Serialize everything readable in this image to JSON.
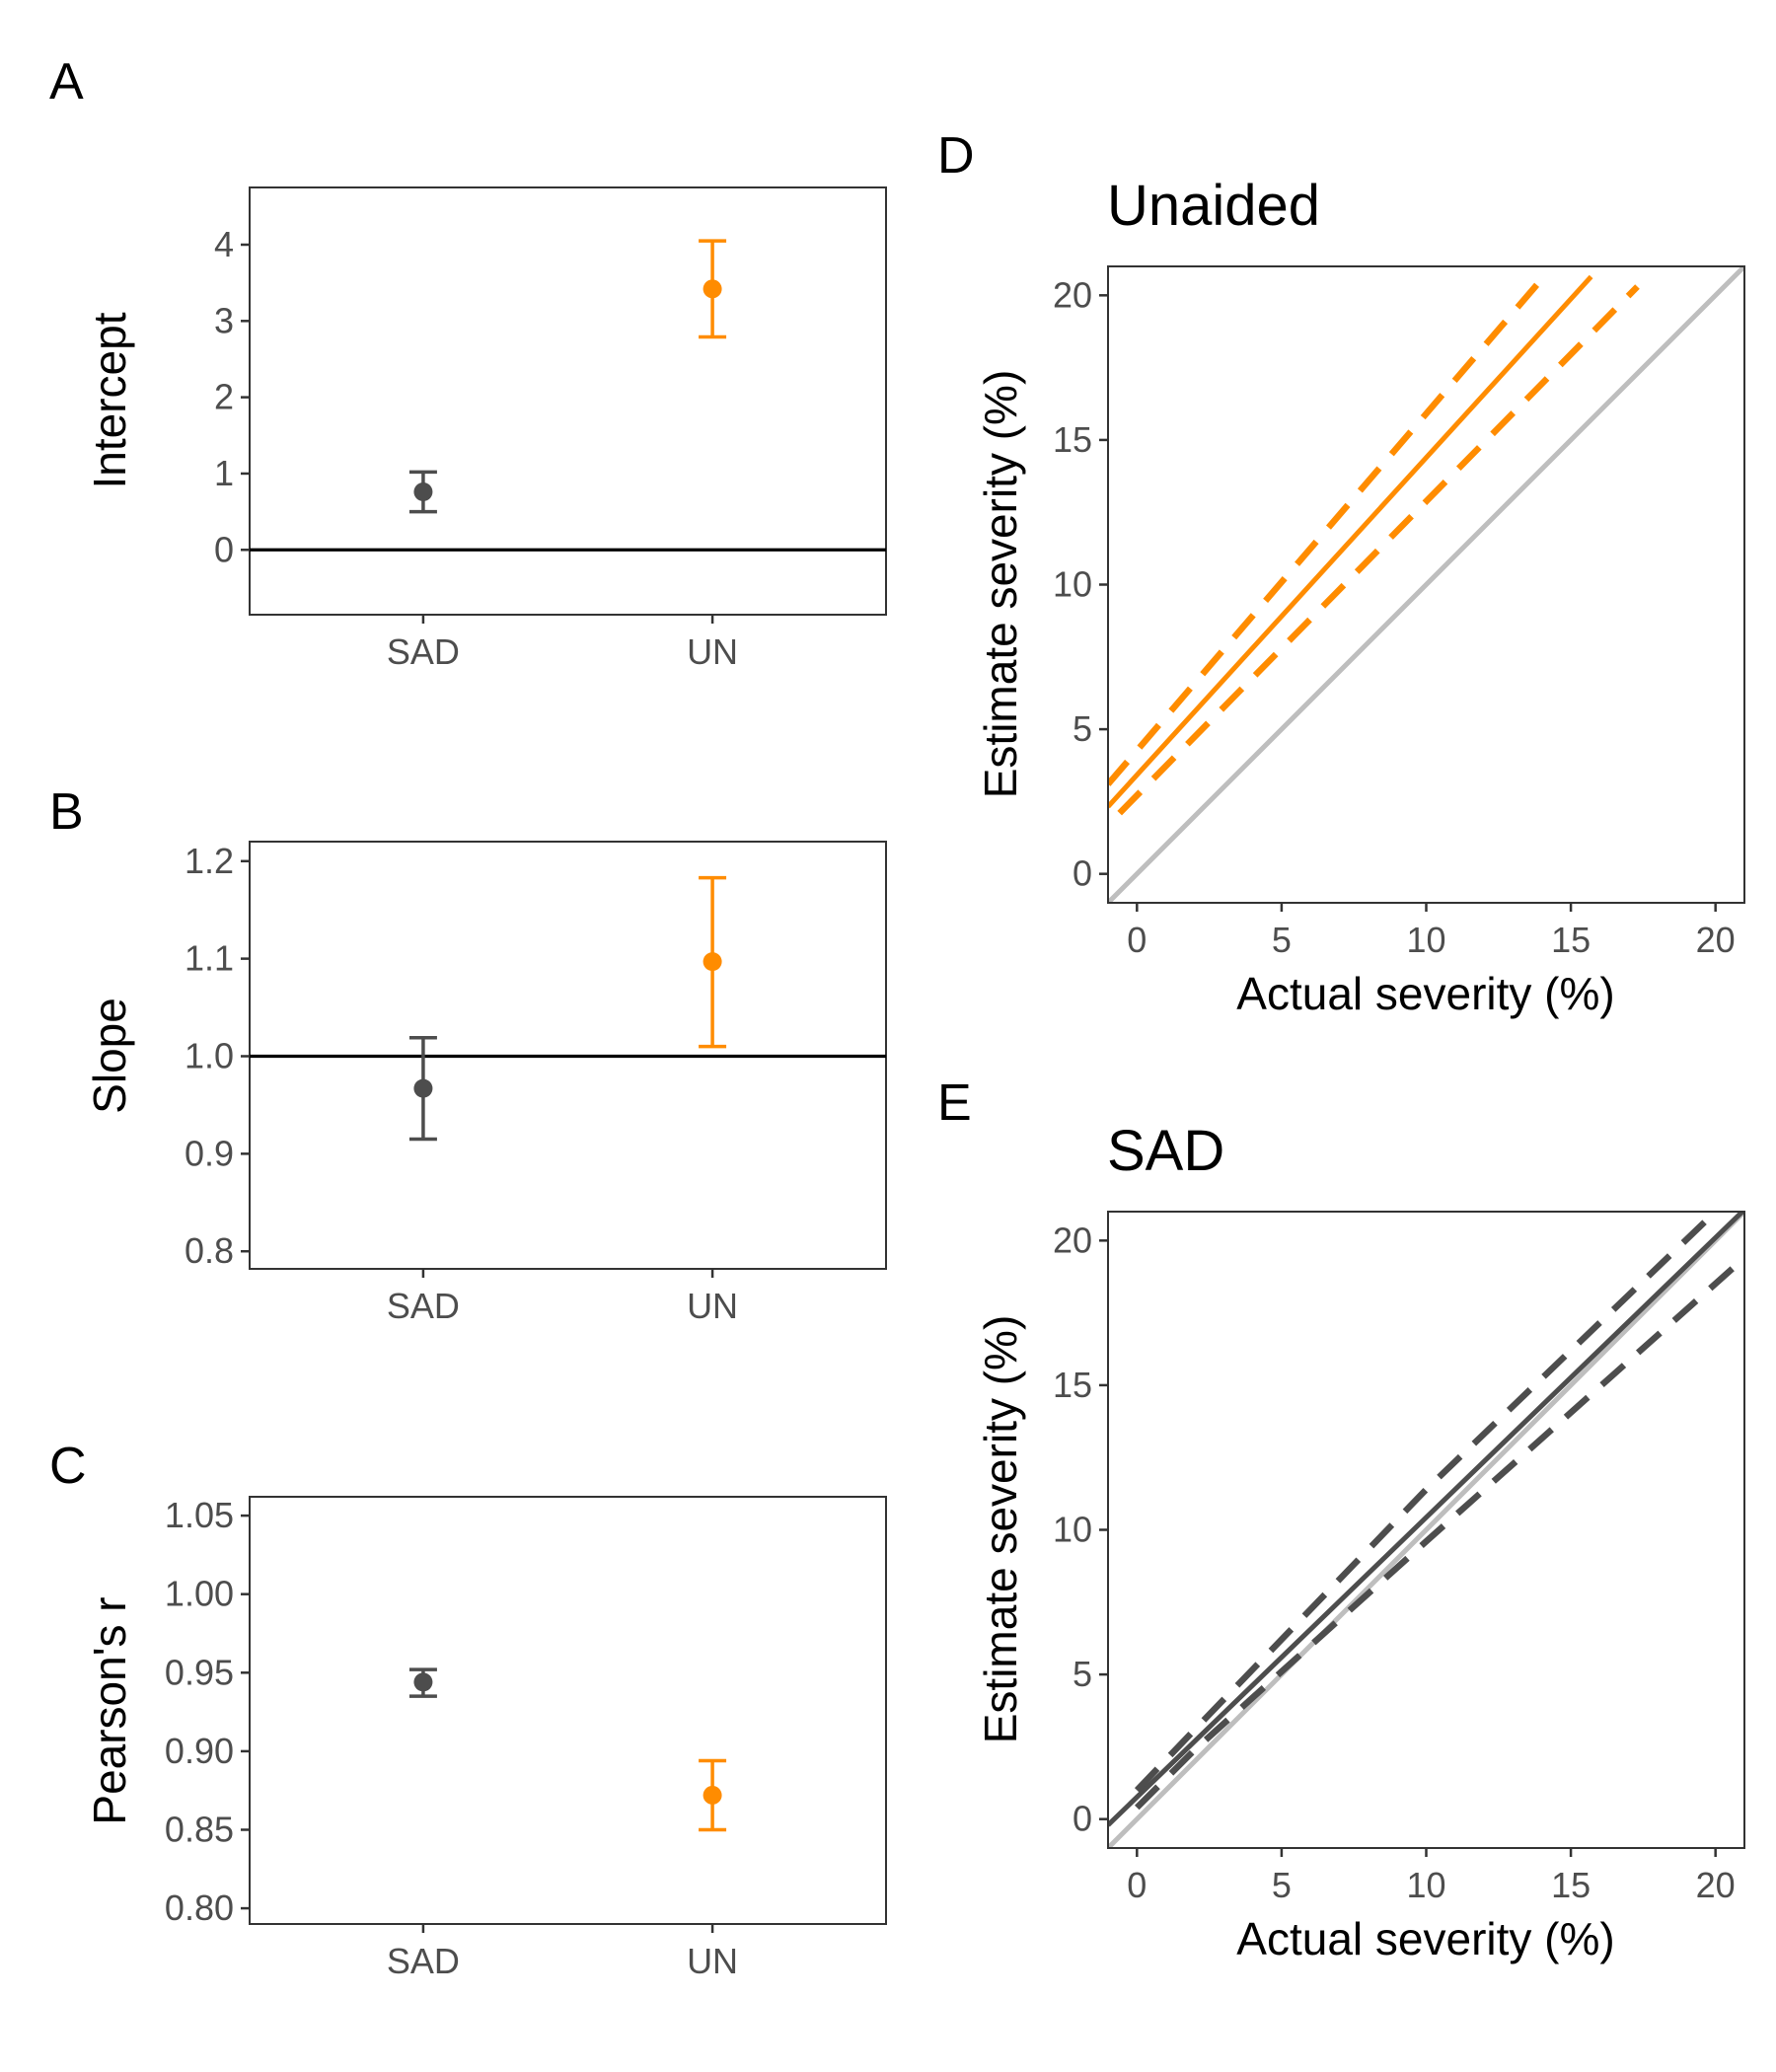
{
  "colors": {
    "SAD": "#4d4d4d",
    "UN": "#ff8c00",
    "identity": "#bebebe",
    "reference": "#000000"
  },
  "chart_data": [
    {
      "panel": "A",
      "type": "scatter",
      "ylabel": "Intercept",
      "categories": [
        "SAD",
        "UN"
      ],
      "ylim": [
        -0.85,
        4.75
      ],
      "yticks": [
        0,
        1,
        2,
        3,
        4
      ],
      "reference_line": 0,
      "points": [
        {
          "category": "SAD",
          "value": 0.76,
          "lower": 0.5,
          "upper": 1.02,
          "color": "#4d4d4d"
        },
        {
          "category": "UN",
          "value": 3.42,
          "lower": 2.79,
          "upper": 4.05,
          "color": "#ff8c00"
        }
      ]
    },
    {
      "panel": "B",
      "type": "scatter",
      "ylabel": "Slope",
      "categories": [
        "SAD",
        "UN"
      ],
      "ylim": [
        0.782,
        1.22
      ],
      "yticks": [
        0.8,
        0.9,
        1.0,
        1.1,
        1.2
      ],
      "reference_line": 1.0,
      "points": [
        {
          "category": "SAD",
          "value": 0.967,
          "lower": 0.915,
          "upper": 1.019,
          "color": "#4d4d4d"
        },
        {
          "category": "UN",
          "value": 1.097,
          "lower": 1.01,
          "upper": 1.183,
          "color": "#ff8c00"
        }
      ]
    },
    {
      "panel": "C",
      "type": "scatter",
      "ylabel": "Pearson's r",
      "categories": [
        "SAD",
        "UN"
      ],
      "ylim": [
        0.79,
        1.062
      ],
      "yticks": [
        0.8,
        0.85,
        0.9,
        0.95,
        1.0,
        1.05
      ],
      "reference_line": null,
      "points": [
        {
          "category": "SAD",
          "value": 0.944,
          "lower": 0.935,
          "upper": 0.952,
          "color": "#4d4d4d"
        },
        {
          "category": "UN",
          "value": 0.872,
          "lower": 0.85,
          "upper": 0.894,
          "color": "#ff8c00"
        }
      ]
    },
    {
      "panel": "D",
      "type": "line",
      "title": "Unaided",
      "xlabel": "Actual severity (%)",
      "ylabel": "Estimate severity (%)",
      "xlim": [
        -1,
        21
      ],
      "ylim": [
        -1,
        21
      ],
      "xticks": [
        0,
        5,
        10,
        15,
        20
      ],
      "yticks": [
        0,
        5,
        10,
        15,
        20
      ],
      "identity_line": true,
      "fit": {
        "intercept": 3.42,
        "slope": 1.097,
        "x_range": [
          -1,
          15.7
        ],
        "color": "#ff8c00"
      },
      "bands": [
        {
          "name": "upper",
          "points": [
            [
              -1,
              3.1
            ],
            [
              14.2,
              20.8
            ]
          ]
        },
        {
          "name": "lower",
          "points": [
            [
              -0.6,
              2.1
            ],
            [
              17.3,
              20.3
            ]
          ]
        }
      ]
    },
    {
      "panel": "E",
      "type": "line",
      "title": "SAD",
      "xlabel": "Actual severity (%)",
      "ylabel": "Estimate severity (%)",
      "xlim": [
        -1,
        21
      ],
      "ylim": [
        -1,
        21
      ],
      "xticks": [
        0,
        5,
        10,
        15,
        20
      ],
      "yticks": [
        0,
        5,
        10,
        15,
        20
      ],
      "identity_line": true,
      "fit": {
        "intercept": 0.76,
        "slope": 0.967,
        "x_range": [
          -1,
          21
        ],
        "color": "#4d4d4d"
      },
      "bands": [
        {
          "name": "upper",
          "points": [
            [
              0,
              1.0
            ],
            [
              2,
              3.1
            ],
            [
              10,
              11.4
            ],
            [
              20,
              21.0
            ]
          ]
        },
        {
          "name": "lower",
          "points": [
            [
              0,
              0.4
            ],
            [
              2,
              2.4
            ],
            [
              10,
              9.6
            ],
            [
              21,
              19.4
            ]
          ]
        }
      ]
    }
  ]
}
